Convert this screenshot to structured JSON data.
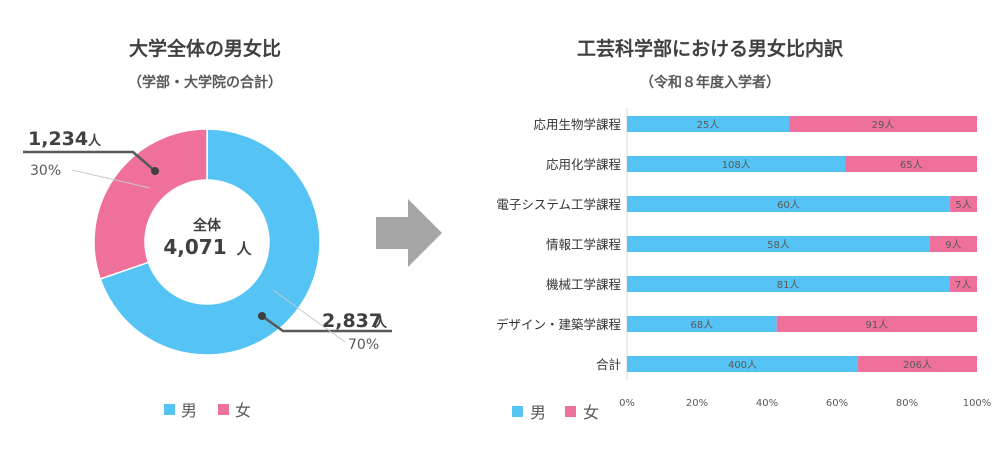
{
  "colors": {
    "male": "#55C3F4",
    "female": "#F0709C",
    "arrow": "#A6A6A6"
  },
  "donut": {
    "title": "大学全体の男女比",
    "subtitle": "（学部・大学院の合計）",
    "center_label": "全体",
    "center_value": "4,071",
    "center_unit": "人",
    "female_count": "1,234",
    "female_unit": "人",
    "female_pct": "30%",
    "male_count": "2,837",
    "male_unit": "人",
    "male_pct": "70%",
    "legend": [
      "男",
      "女"
    ]
  },
  "bars": {
    "title": "工芸科学部における男女比内訳",
    "subtitle": "（令和８年度入学者）",
    "legend": [
      "男",
      "女"
    ],
    "x_ticks": [
      "0%",
      "20%",
      "40%",
      "60%",
      "80%",
      "100%"
    ]
  },
  "chart_data": [
    {
      "type": "pie",
      "title": "大学全体の男女比",
      "subtitle": "（学部・大学院の合計）",
      "categories": [
        "男",
        "女"
      ],
      "values": [
        2837,
        1234
      ],
      "percent_labels": [
        "70%",
        "30%"
      ],
      "total": 4071,
      "center_text": "全体 4,071 人",
      "donut": true
    },
    {
      "type": "bar",
      "orientation": "horizontal",
      "stacked": true,
      "normalized": true,
      "title": "工芸科学部における男女比内訳",
      "subtitle": "（令和８年度入学者）",
      "categories": [
        "応用生物学課程",
        "応用化学課程",
        "電子システム工学課程",
        "情報工学課程",
        "機械工学課程",
        "デザイン・建築学課程",
        "合計"
      ],
      "series": [
        {
          "name": "男",
          "values": [
            25,
            108,
            60,
            58,
            81,
            68,
            400
          ],
          "labels": [
            "25人",
            "108人",
            "60人",
            "58人",
            "81人",
            "68人",
            "400人"
          ]
        },
        {
          "name": "女",
          "values": [
            29,
            65,
            5,
            9,
            7,
            91,
            206
          ],
          "labels": [
            "29人",
            "65人",
            "5人",
            "9人",
            "7人",
            "91人",
            "206人"
          ]
        }
      ],
      "xlim": [
        0,
        100
      ],
      "x_ticks": [
        "0%",
        "20%",
        "40%",
        "60%",
        "80%",
        "100%"
      ],
      "legend_position": "bottom-left"
    }
  ]
}
